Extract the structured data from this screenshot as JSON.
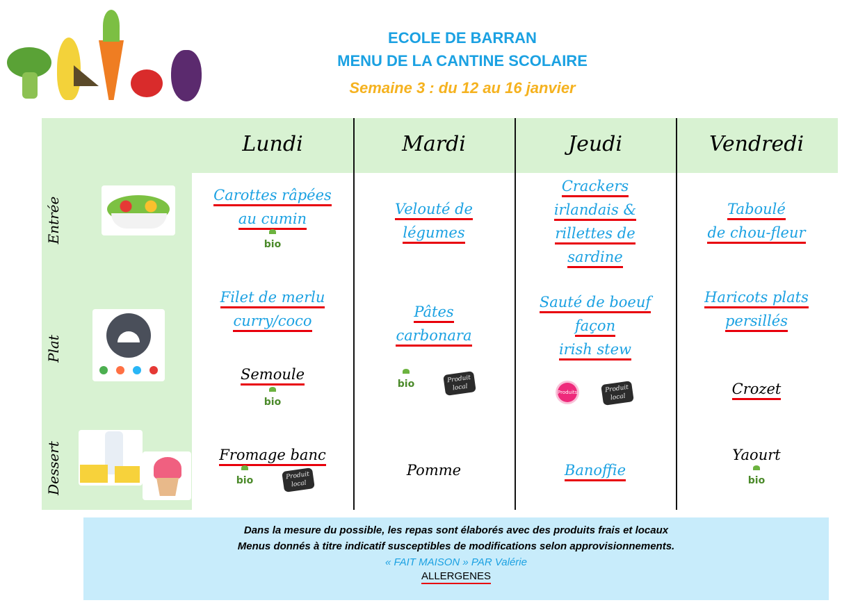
{
  "header": {
    "school": "ECOLE DE BARRAN",
    "title": "MENU DE LA CANTINE SCOLAIRE",
    "week": "Semaine 3 :  du 12 au 16 janvier"
  },
  "rows": [
    "Entrée",
    "Plat",
    "Dessert"
  ],
  "days": [
    {
      "name": "Lundi",
      "dishes": [
        {
          "lines": [
            "Carottes râpées",
            "au cumin"
          ],
          "style": "link",
          "underline": true
        },
        {
          "badges": [
            "bio"
          ]
        },
        {
          "lines": [
            "Filet de merlu",
            "curry/coco"
          ],
          "style": "link",
          "underline": true
        },
        {
          "lines": [
            "Semoule"
          ],
          "style": "black",
          "underline": true
        },
        {
          "badges": [
            "bio"
          ]
        },
        {
          "lines": [
            "Fromage banc"
          ],
          "style": "black",
          "underline": true
        },
        {
          "badges": [
            "bio",
            "produit-local"
          ]
        }
      ]
    },
    {
      "name": "Mardi",
      "dishes": [
        {
          "lines": [
            "Velouté de",
            "légumes"
          ],
          "style": "link",
          "underline": true
        },
        {
          "lines": [
            "Pâtes",
            "carbonara"
          ],
          "style": "link",
          "underline": true
        },
        {
          "badges": [
            "bio",
            "produit-local"
          ]
        },
        {
          "lines": [
            "Pomme"
          ],
          "style": "black",
          "underline": false
        }
      ]
    },
    {
      "name": "Jeudi",
      "dishes": [
        {
          "lines": [
            "Crackers",
            "irlandais &",
            "rillettes de",
            "sardine"
          ],
          "style": "link",
          "underline": true
        },
        {
          "lines": [
            "Sauté de boeuf",
            "façon",
            "irish stew"
          ],
          "style": "link",
          "underline": true
        },
        {
          "badges": [
            "produits-frais",
            "produit-local"
          ]
        },
        {
          "lines": [
            "Banoffie"
          ],
          "style": "link",
          "underline": true
        }
      ]
    },
    {
      "name": "Vendredi",
      "dishes": [
        {
          "lines": [
            "Taboulé",
            "de chou-fleur"
          ],
          "style": "link",
          "underline": true
        },
        {
          "lines": [
            "Haricots plats",
            "persillés"
          ],
          "style": "link",
          "underline": true
        },
        {
          "lines": [
            "Crozet"
          ],
          "style": "black",
          "underline": true
        },
        {
          "lines": [
            "Yaourt"
          ],
          "style": "black",
          "underline": false
        },
        {
          "badges": [
            "bio"
          ]
        }
      ]
    }
  ],
  "badge_labels": {
    "bio": "bio",
    "produit-local": "Produit local",
    "produits-frais": "Produits frais"
  },
  "footer": {
    "line1": "Dans la mesure du possible, les repas sont élaborés avec des produits frais et locaux",
    "line2": "Menus donnés à titre indicatif susceptibles de modifications selon approvisionnements.",
    "line3": "« FAIT MAISON » PAR Valérie",
    "allergens": "ALLERGENES"
  },
  "colors": {
    "title": "#1ba1e2",
    "week": "#f5b21f",
    "green_band": "#d8f2d2",
    "footer_bg": "#c8ecfb",
    "underline": "#e8000b"
  }
}
